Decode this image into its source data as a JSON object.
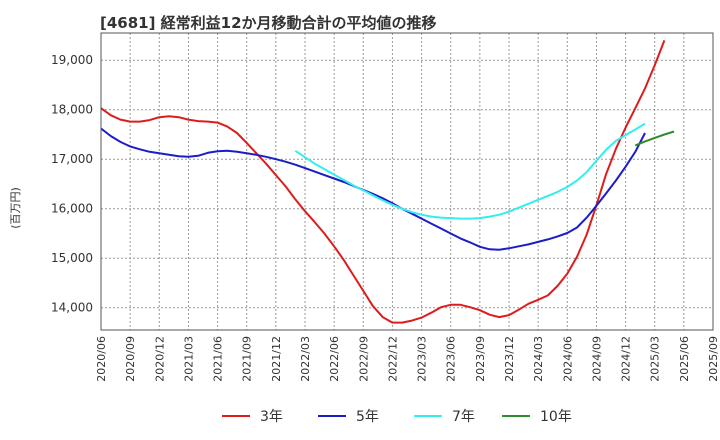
{
  "chart_data": {
    "type": "line",
    "title": "[4681]  経常利益12か月移動合計の平均値の推移",
    "ylabel": "(百万円)",
    "xlabel": "",
    "ylim": [
      13550,
      19550
    ],
    "yticks": [
      14000,
      15000,
      16000,
      17000,
      18000,
      19000
    ],
    "ytick_labels": [
      "14,000",
      "15,000",
      "16,000",
      "17,000",
      "18,000",
      "19,000"
    ],
    "x_start": "2020/06",
    "x_end": "2025/09",
    "xtick_labels": [
      "2020/06",
      "2020/09",
      "2020/12",
      "2021/03",
      "2021/06",
      "2021/09",
      "2021/12",
      "2022/03",
      "2022/06",
      "2022/09",
      "2022/12",
      "2023/03",
      "2023/06",
      "2023/09",
      "2023/12",
      "2024/03",
      "2024/06",
      "2024/09",
      "2024/12",
      "2025/03",
      "2025/06",
      "2025/09"
    ],
    "grid": true,
    "legend_position": "bottom",
    "series": [
      {
        "name": "3年",
        "color": "#dd1c1c",
        "start": "2020/06",
        "values": [
          18030,
          17890,
          17800,
          17760,
          17760,
          17790,
          17850,
          17870,
          17850,
          17800,
          17770,
          17760,
          17740,
          17660,
          17530,
          17330,
          17120,
          16910,
          16680,
          16450,
          16190,
          15950,
          15730,
          15500,
          15240,
          14960,
          14650,
          14340,
          14030,
          13810,
          13700,
          13700,
          13740,
          13800,
          13900,
          14010,
          14060,
          14060,
          14010,
          13950,
          13860,
          13810,
          13850,
          13960,
          14080,
          14160,
          14250,
          14440,
          14690,
          15030,
          15480,
          16070,
          16700,
          17210,
          17640,
          18030,
          18430,
          18900,
          19400
        ]
      },
      {
        "name": "5年",
        "color": "#1c1cc8",
        "start": "2020/06",
        "values": [
          17620,
          17470,
          17350,
          17260,
          17200,
          17150,
          17120,
          17090,
          17060,
          17050,
          17070,
          17130,
          17160,
          17170,
          17150,
          17120,
          17090,
          17050,
          17000,
          16950,
          16890,
          16820,
          16750,
          16680,
          16610,
          16540,
          16460,
          16380,
          16300,
          16210,
          16110,
          16000,
          15900,
          15800,
          15700,
          15600,
          15500,
          15400,
          15320,
          15230,
          15180,
          15170,
          15200,
          15240,
          15280,
          15330,
          15380,
          15440,
          15510,
          15620,
          15820,
          16060,
          16310,
          16570,
          16850,
          17150,
          17530
        ]
      },
      {
        "name": "7年",
        "color": "#33eeee",
        "start": "2022/02",
        "values": [
          17170,
          17040,
          16910,
          16800,
          16690,
          16580,
          16470,
          16370,
          16270,
          16170,
          16080,
          16000,
          15930,
          15880,
          15840,
          15820,
          15810,
          15800,
          15800,
          15810,
          15840,
          15880,
          15940,
          16020,
          16100,
          16180,
          16260,
          16340,
          16440,
          16570,
          16740,
          16970,
          17190,
          17370,
          17490,
          17600,
          17720
        ]
      },
      {
        "name": "10年",
        "color": "#2e8b2e",
        "start": "2025/01",
        "values": [
          17280,
          17360,
          17430,
          17500,
          17560
        ]
      }
    ]
  }
}
